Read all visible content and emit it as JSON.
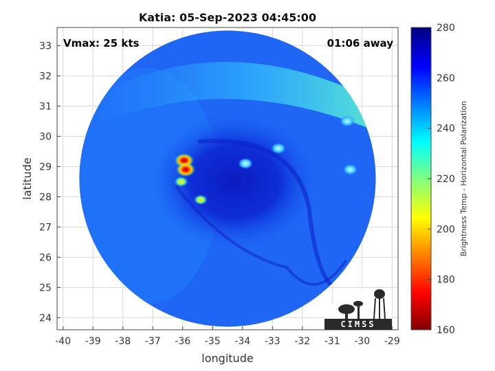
{
  "chart_data": {
    "type": "heatmap",
    "title": "Katia: 05-Sep-2023 04:45:00",
    "xlabel": "longitude",
    "ylabel": "latitude",
    "xlim": [
      -40.2,
      -28.8
    ],
    "ylim": [
      23.6,
      33.6
    ],
    "xticks": [
      -40,
      -39,
      -38,
      -37,
      -36,
      -35,
      -34,
      -33,
      -32,
      -31,
      -30,
      -29
    ],
    "yticks": [
      24,
      25,
      26,
      27,
      28,
      29,
      30,
      31,
      32,
      33
    ],
    "grid": true,
    "annotations": {
      "vmax": "Vmax: 25 kts",
      "time_offset": "01:06 away"
    },
    "swath": {
      "center_lon": -34.5,
      "center_lat": 28.6,
      "radius_deg_lat": 4.9
    },
    "background_brightness_temp": 262,
    "features": [
      {
        "lon": -35.95,
        "lat": 29.2,
        "value": 178
      },
      {
        "lon": -35.9,
        "lat": 28.9,
        "value": 188
      },
      {
        "lon": -36.05,
        "lat": 28.5,
        "value": 218
      },
      {
        "lon": -35.4,
        "lat": 27.9,
        "value": 232
      },
      {
        "lon": -32.8,
        "lat": 29.6,
        "value": 238
      },
      {
        "lon": -33.9,
        "lat": 29.1,
        "value": 244
      },
      {
        "lon": -30.4,
        "lat": 28.9,
        "value": 238
      },
      {
        "lon": -30.5,
        "lat": 30.5,
        "value": 240
      },
      {
        "lon": -29.8,
        "lat": 31.0,
        "value": 236
      }
    ],
    "colorbar": {
      "label": "Brightness Temp - Horizontal Polarization",
      "range": [
        160,
        280
      ],
      "ticks": [
        160,
        180,
        200,
        220,
        240,
        260,
        280
      ],
      "colormap": "jet"
    }
  },
  "logo": {
    "text": "CIMSS"
  }
}
